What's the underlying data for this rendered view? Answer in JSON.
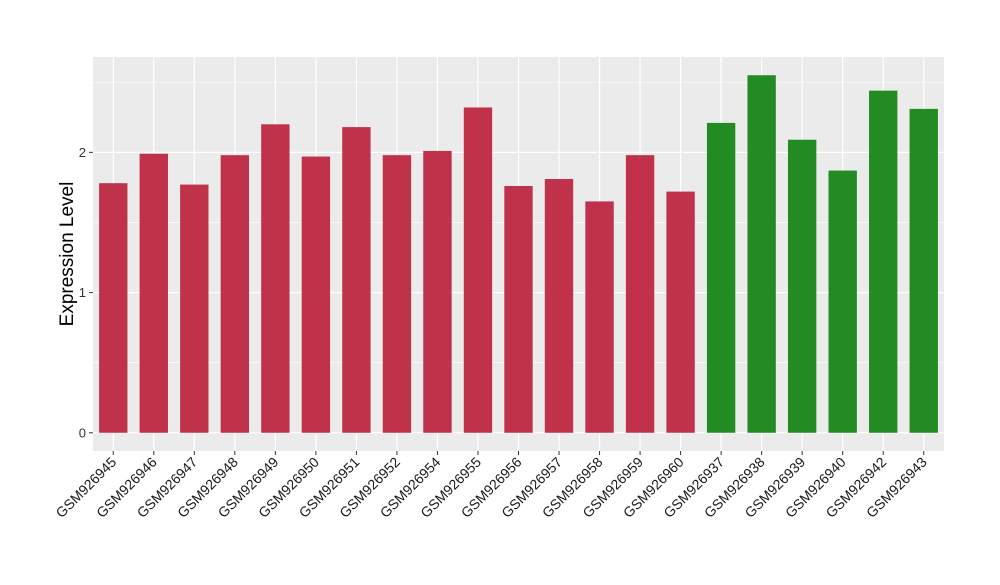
{
  "chart_data": {
    "type": "bar",
    "title": "",
    "xlabel": "",
    "ylabel": "Expression Level",
    "ylim": [
      -0.13,
      2.68
    ],
    "yticks": [
      0,
      1,
      2
    ],
    "grid": true,
    "legend": "none",
    "colors": {
      "group_a": "#c0314a",
      "group_b": "#228b22",
      "panel": "#ebebeb",
      "grid": "#ffffff"
    },
    "categories": [
      "GSM926945",
      "GSM926946",
      "GSM926947",
      "GSM926948",
      "GSM926949",
      "GSM926950",
      "GSM926951",
      "GSM926952",
      "GSM926954",
      "GSM926955",
      "GSM926956",
      "GSM926957",
      "GSM926958",
      "GSM926959",
      "GSM926960",
      "GSM926937",
      "GSM926938",
      "GSM926939",
      "GSM926940",
      "GSM926942",
      "GSM926943"
    ],
    "values": [
      1.78,
      1.99,
      1.77,
      1.98,
      2.2,
      1.97,
      2.18,
      1.98,
      2.01,
      2.32,
      1.76,
      1.81,
      1.65,
      1.98,
      1.72,
      2.21,
      2.55,
      2.09,
      1.87,
      2.44,
      2.31
    ],
    "groups": [
      "group_a",
      "group_a",
      "group_a",
      "group_a",
      "group_a",
      "group_a",
      "group_a",
      "group_a",
      "group_a",
      "group_a",
      "group_a",
      "group_a",
      "group_a",
      "group_a",
      "group_a",
      "group_b",
      "group_b",
      "group_b",
      "group_b",
      "group_b",
      "group_b"
    ]
  }
}
